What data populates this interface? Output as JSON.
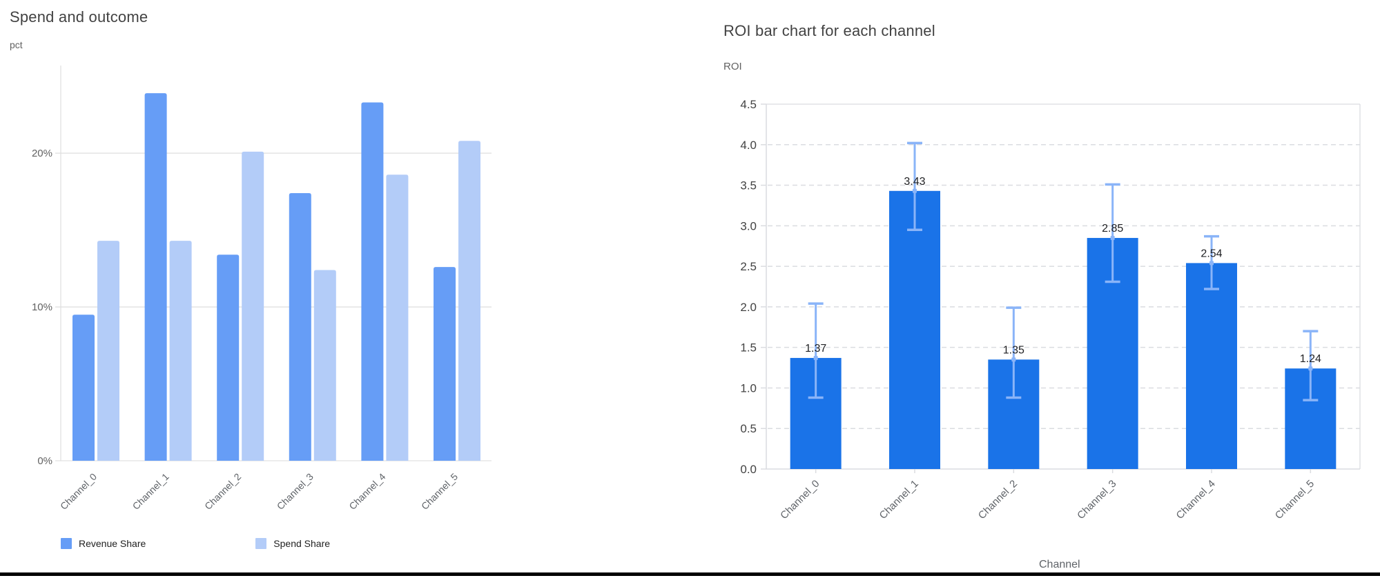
{
  "page": {
    "background": "#ffffff",
    "divider_color": "#000000"
  },
  "colors": {
    "revenue_bar": "#669df6",
    "spend_bar": "#b3ccf8",
    "roi_bar": "#1a73e8",
    "error_bar": "#8ab4f8",
    "gridline": "#e0e0e0",
    "dashed_gridline": "#dadce0",
    "title_text": "#424242",
    "tick_text": "#616161",
    "category_text": "#5f6368",
    "value_label_text": "#202124"
  },
  "chart_data": [
    {
      "type": "bar",
      "title": "Spend and outcome",
      "ylabel": "pct",
      "xlabel": "",
      "categories": [
        "Channel_0",
        "Channel_1",
        "Channel_2",
        "Channel_3",
        "Channel_4",
        "Channel_5"
      ],
      "series": [
        {
          "name": "Revenue Share",
          "color": "#669df6",
          "values": [
            9.5,
            23.9,
            13.4,
            17.4,
            23.3,
            12.6
          ]
        },
        {
          "name": "Spend Share",
          "color": "#b3ccf8",
          "values": [
            14.3,
            14.3,
            20.1,
            12.4,
            18.6,
            20.8
          ]
        }
      ],
      "y_ticks": [
        {
          "value": 0,
          "label": "0%"
        },
        {
          "value": 10,
          "label": "10%"
        },
        {
          "value": 20,
          "label": "20%"
        }
      ],
      "ylim": [
        0,
        25.7
      ],
      "grid": "horizontal-solid",
      "legend_position": "bottom"
    },
    {
      "type": "bar",
      "title": "ROI bar chart for each channel",
      "ylabel": "ROI",
      "xlabel": "Channel",
      "categories": [
        "Channel_0",
        "Channel_1",
        "Channel_2",
        "Channel_3",
        "Channel_4",
        "Channel_5"
      ],
      "values": [
        1.37,
        3.43,
        1.35,
        2.85,
        2.54,
        1.24
      ],
      "data_labels": [
        "1.37",
        "3.43",
        "1.35",
        "2.85",
        "2.54",
        "1.24"
      ],
      "error_low": [
        0.88,
        2.95,
        0.88,
        2.31,
        2.22,
        0.85
      ],
      "error_high": [
        2.04,
        4.02,
        1.99,
        3.51,
        2.87,
        1.7
      ],
      "bar_color": "#1a73e8",
      "error_bar_color": "#8ab4f8",
      "y_ticks": [
        "0.0",
        "0.5",
        "1.0",
        "1.5",
        "2.0",
        "2.5",
        "3.0",
        "3.5",
        "4.0",
        "4.5"
      ],
      "ylim": [
        0,
        4.5
      ],
      "y_tick_step": 0.5,
      "grid": "horizontal-dashed",
      "legend_position": "none"
    }
  ]
}
